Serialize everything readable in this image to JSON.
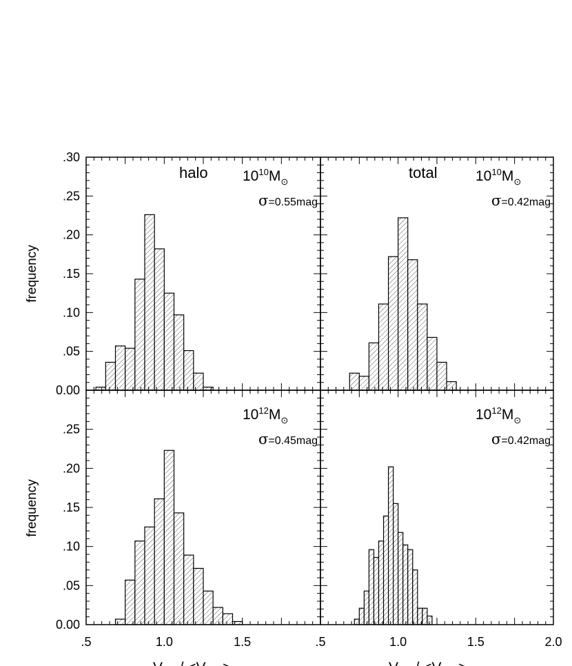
{
  "chart_data": [
    {
      "type": "bar",
      "panel": "top-left",
      "label": "halo",
      "mass": {
        "base": "10",
        "exponent": "10",
        "unit": "M",
        "symbol": "⊙"
      },
      "sigma": "σ=0.55mag",
      "ylabel": "frequency",
      "bin_width": 0.0625,
      "bin_start": 0.5625,
      "values": [
        0.004,
        0.036,
        0.057,
        0.054,
        0.143,
        0.226,
        0.182,
        0.125,
        0.097,
        0.051,
        0.022,
        0.004
      ]
    },
    {
      "type": "bar",
      "panel": "top-right",
      "label": "total",
      "mass": {
        "base": "10",
        "exponent": "10",
        "unit": "M",
        "symbol": "⊙"
      },
      "sigma": "σ=0.42mag",
      "ylabel": "",
      "bin_width": 0.0625,
      "bin_start": 0.6875,
      "values": [
        0.022,
        0.018,
        0.061,
        0.111,
        0.172,
        0.222,
        0.168,
        0.111,
        0.068,
        0.036,
        0.011
      ]
    },
    {
      "type": "bar",
      "panel": "bottom-left",
      "label": "",
      "mass": {
        "base": "10",
        "exponent": "12",
        "unit": "M",
        "symbol": "⊙"
      },
      "sigma": "σ=0.45mag",
      "ylabel": "frequency",
      "bin_width": 0.0625,
      "bin_start": 0.6875,
      "values": [
        0.007,
        0.057,
        0.107,
        0.125,
        0.161,
        0.223,
        0.143,
        0.089,
        0.072,
        0.043,
        0.022,
        0.014,
        0.004
      ]
    },
    {
      "type": "bar",
      "panel": "bottom-right",
      "label": "",
      "mass": {
        "base": "10",
        "exponent": "12",
        "unit": "M",
        "symbol": "⊙"
      },
      "sigma": "σ=0.42mag",
      "ylabel": "",
      "bin_width": 0.03125,
      "bin_start": 0.71875,
      "values": [
        0.007,
        0.021,
        0.043,
        0.096,
        0.086,
        0.107,
        0.139,
        0.202,
        0.155,
        0.118,
        0.102,
        0.096,
        0.07,
        0.021,
        0.021,
        0.011
      ]
    }
  ],
  "axes": {
    "xlim": [
      0.5,
      2.0
    ],
    "ylim": [
      0,
      0.3
    ],
    "x_tick_labels_left": [
      ".5",
      "1.0",
      "1.5"
    ],
    "x_tick_labels_right": [
      ".5",
      "1.0",
      "1.5",
      "2.0"
    ],
    "y_tick_labels_top": [
      "0.00",
      ".05",
      ".10",
      ".15",
      ".20",
      ".25",
      ".30"
    ],
    "y_tick_labels_bottom": [
      "0.00",
      ".05",
      ".10",
      ".15",
      ".20",
      ".25"
    ]
  },
  "xlabel": {
    "prefix": "V",
    "sub1": "max",
    "middle": "/ <V",
    "sub2": "max",
    "suffix": ">"
  }
}
